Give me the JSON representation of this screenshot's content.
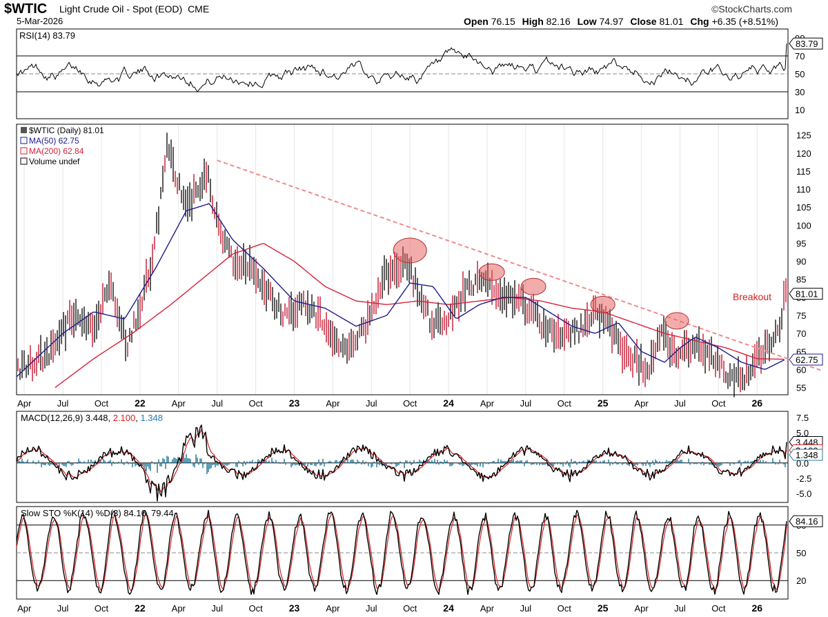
{
  "header": {
    "symbol": "$WTIC",
    "description": "Light Crude Oil - Spot (EOD)",
    "exchange": "CME",
    "date": "5-Mar-2026",
    "logo": "©StockCharts.com",
    "open_label": "Open",
    "open": "76.15",
    "high_label": "High",
    "high": "82.16",
    "low_label": "Low",
    "low": "74.97",
    "close_label": "Close",
    "close": "81.01",
    "chg_label": "Chg",
    "chg": "+6.35 (+8.51%)"
  },
  "colors": {
    "price_bars": "#000000",
    "down_bars": "#c0001c",
    "ma50": "#1a1a8c",
    "ma200": "#d6203a",
    "trendline": "#f08a8a",
    "highlight": "#e85a5a",
    "macd_hist": "#2a7a9a",
    "annotation": "#d62020"
  },
  "chart_data": [
    {
      "type": "line",
      "panel": "rsi",
      "legend": "RSI(14) 83.79",
      "series": [
        {
          "name": "RSI(14)",
          "last": 83.79
        }
      ],
      "y_ticks": [
        "10",
        "30",
        "50",
        "70",
        "90"
      ],
      "ylim": [
        0,
        100
      ],
      "ref_lines": [
        30,
        50,
        70
      ],
      "last_label": "83.79"
    },
    {
      "type": "ohlc",
      "panel": "price",
      "legend": [
        "$WTIC (Daily) 81.01",
        "MA(50) 62.75",
        "MA(200) 62.84",
        "Volume undef"
      ],
      "y_ticks": [
        "55",
        "60",
        "65",
        "70",
        "75",
        "80",
        "85",
        "90",
        "95",
        "100",
        "105",
        "110",
        "115",
        "120",
        "125"
      ],
      "ylim": [
        53,
        128
      ],
      "x_labels": [
        "Apr",
        "Jul",
        "Oct",
        "22",
        "Apr",
        "Jul",
        "Oct",
        "23",
        "Apr",
        "Jul",
        "Oct",
        "24",
        "Apr",
        "Jul",
        "Oct",
        "25",
        "Apr",
        "Jul",
        "Oct",
        "26"
      ],
      "x_range": [
        2021.2,
        2026.2
      ],
      "series": [
        {
          "name": "$WTIC",
          "x": [
            2021.22,
            2021.4,
            2021.55,
            2021.7,
            2021.8,
            2021.92,
            2022.08,
            2022.18,
            2022.3,
            2022.43,
            2022.52,
            2022.6,
            2022.72,
            2022.85,
            2022.95,
            2023.05,
            2023.2,
            2023.3,
            2023.45,
            2023.58,
            2023.72,
            2023.9,
            2024.0,
            2024.1,
            2024.25,
            2024.35,
            2024.5,
            2024.6,
            2024.72,
            2024.85,
            2024.95,
            2025.05,
            2025.15,
            2025.3,
            2025.38,
            2025.48,
            2025.6,
            2025.72,
            2025.85,
            2025.95,
            2026.05,
            2026.15,
            2026.18
          ],
          "y": [
            60,
            64,
            74,
            71,
            84,
            66,
            90,
            122,
            104,
            115,
            98,
            90,
            88,
            80,
            74,
            79,
            73,
            65,
            71,
            86,
            90,
            72,
            74,
            82,
            85,
            80,
            78,
            72,
            69,
            71,
            76,
            72,
            64,
            60,
            70,
            64,
            66,
            63,
            57,
            59,
            66,
            70,
            81.01
          ]
        },
        {
          "name": "MA(50)",
          "x": [
            2021.2,
            2021.5,
            2021.7,
            2021.9,
            2022.1,
            2022.3,
            2022.45,
            2022.6,
            2022.8,
            2023.0,
            2023.2,
            2023.4,
            2023.6,
            2023.75,
            2023.9,
            2024.05,
            2024.2,
            2024.35,
            2024.5,
            2024.65,
            2024.8,
            2024.95,
            2025.1,
            2025.25,
            2025.4,
            2025.5,
            2025.6,
            2025.75,
            2025.9,
            2026.05,
            2026.18
          ],
          "y": [
            58,
            70,
            76,
            74,
            88,
            104,
            106,
            96,
            88,
            79,
            77,
            72,
            75,
            84,
            83,
            74,
            78,
            80,
            80,
            76,
            72,
            70,
            73,
            65,
            62,
            66,
            69,
            66,
            62,
            60,
            62.75
          ]
        },
        {
          "name": "MA(200)",
          "x": [
            2021.45,
            2021.7,
            2021.95,
            2022.2,
            2022.4,
            2022.6,
            2022.8,
            2023.0,
            2023.2,
            2023.4,
            2023.6,
            2023.8,
            2024.0,
            2024.2,
            2024.4,
            2024.6,
            2024.8,
            2025.0,
            2025.2,
            2025.4,
            2025.6,
            2025.8,
            2026.0,
            2026.18
          ],
          "y": [
            55,
            63,
            70,
            78,
            85,
            92,
            95,
            90,
            83,
            79,
            78,
            79,
            78,
            79,
            80,
            79,
            77,
            76,
            73,
            70,
            68,
            66,
            63,
            62.84
          ]
        }
      ],
      "trendline": {
        "from": [
          2022.5,
          118
        ],
        "to": [
          2026.2,
          65
        ]
      },
      "highlighted_peaks": [
        {
          "x": 2023.75,
          "y": 93
        },
        {
          "x": 2024.28,
          "y": 87
        },
        {
          "x": 2024.55,
          "y": 83
        },
        {
          "x": 2025.0,
          "y": 78
        },
        {
          "x": 2025.48,
          "y": 73.5
        }
      ],
      "annotation": "Breakout",
      "last_labels": {
        "close": "81.01",
        "ma": "62.75"
      }
    },
    {
      "type": "line",
      "panel": "macd",
      "legend_name": "MACD(12,26,9)",
      "legend_macd": "3.448",
      "legend_signal": "2.100",
      "legend_hist": "1.348",
      "series": [
        {
          "name": "MACD",
          "last": 3.448
        },
        {
          "name": "Signal",
          "last": 2.1
        },
        {
          "name": "Histogram",
          "last": 1.348
        }
      ],
      "y_ticks": [
        "-5.0",
        "-2.5",
        "0.0",
        "2.5",
        "5.0",
        "7.5"
      ],
      "ylim": [
        -6.5,
        8.5
      ],
      "last_labels": [
        "3.448",
        "2.100",
        "1.348"
      ]
    },
    {
      "type": "line",
      "panel": "stochastic",
      "legend": "Slow STO %K(14) %D(3) 84.16, 79.44",
      "series": [
        {
          "name": "%K",
          "last": 84.16
        },
        {
          "name": "%D",
          "last": 79.44
        }
      ],
      "y_ticks": [
        "20",
        "50",
        "80"
      ],
      "ylim": [
        0,
        100
      ],
      "ref_lines": [
        20,
        50,
        80
      ],
      "last_label": "84.16"
    }
  ]
}
